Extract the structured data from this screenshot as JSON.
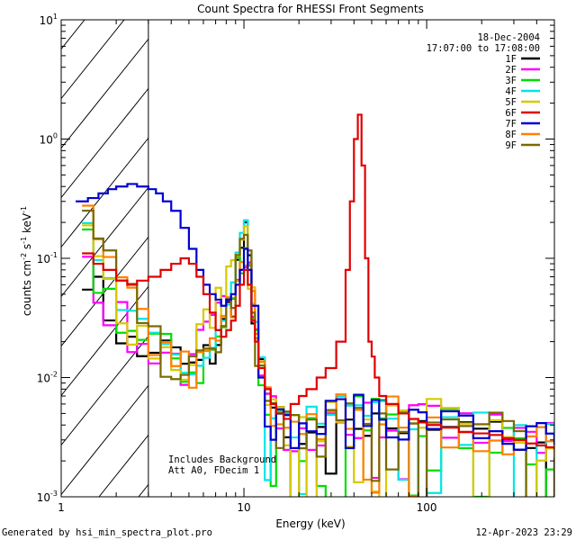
{
  "chart_data": {
    "type": "line",
    "title": "Count Spectra for RHESSI Front Segments",
    "xlabel": "Energy (keV)",
    "ylabel_base": "counts cm",
    "ylabel_exp1": "-2",
    "ylabel_mid": " s",
    "ylabel_exp2": "-1",
    "ylabel_end": " keV",
    "ylabel_exp3": "-1",
    "x_scale": "log",
    "y_scale": "log",
    "xlim": [
      1,
      500
    ],
    "ylim": [
      0.001,
      10
    ],
    "x_ticks": [
      {
        "value": 1,
        "label": "1"
      },
      {
        "value": 10,
        "label": "10"
      },
      {
        "value": 100,
        "label": "100"
      }
    ],
    "y_ticks": [
      {
        "value": 0.001,
        "base": "10",
        "exp": "-3"
      },
      {
        "value": 0.01,
        "base": "10",
        "exp": "-2"
      },
      {
        "value": 0.1,
        "base": "10",
        "exp": "-1"
      },
      {
        "value": 1,
        "base": "10",
        "exp": "0"
      },
      {
        "value": 10,
        "base": "10",
        "exp": "1"
      }
    ],
    "hatched_region": {
      "x_from": 1,
      "x_to": 3
    },
    "date": "18-Dec-2004",
    "time_range": "17:07:00 to 17:08:00",
    "annotations": [
      "Includes Background",
      "Att A0, FDecim 1"
    ],
    "series": [
      {
        "name": "1F",
        "color": "#000000"
      },
      {
        "name": "2F",
        "color": "#ff00ff"
      },
      {
        "name": "3F",
        "color": "#00dd00"
      },
      {
        "name": "4F",
        "color": "#00e6e6"
      },
      {
        "name": "5F",
        "color": "#d8c800"
      },
      {
        "name": "6F",
        "color": "#e00000"
      },
      {
        "name": "7F",
        "color": "#0000d0"
      },
      {
        "name": "8F",
        "color": "#ff8000"
      },
      {
        "name": "9F",
        "color": "#7a6a00"
      }
    ],
    "common_points": {
      "x": [
        1.3,
        1.5,
        1.7,
        2.0,
        2.3,
        2.6,
        3.0,
        3.5,
        4.0,
        4.5,
        5.0,
        5.5,
        6.0,
        6.5,
        7.0,
        7.5,
        8.0,
        8.5,
        9.0,
        9.5,
        10.0,
        10.5,
        11.0,
        11.5,
        12.0,
        13.0,
        14.0,
        15.0,
        16.5,
        18.0,
        20.0,
        22.0,
        25.0,
        28.0,
        32.0,
        36.0,
        40.0,
        45.0,
        50.0,
        55.0,
        60.0,
        70.0,
        80.0,
        90.0,
        100.0,
        120.0,
        150.0,
        180.0,
        220.0,
        260.0,
        300.0,
        350.0,
        400.0,
        450.0,
        500.0
      ],
      "baseline_y": [
        0.13,
        0.07,
        0.05,
        0.035,
        0.025,
        0.02,
        0.018,
        0.016,
        0.014,
        0.012,
        0.011,
        0.012,
        0.014,
        0.016,
        0.02,
        0.025,
        0.035,
        0.05,
        0.08,
        0.12,
        0.14,
        0.08,
        0.04,
        0.02,
        0.01,
        0.006,
        0.005,
        0.004,
        0.0035,
        0.004,
        0.0032,
        0.004,
        0.0035,
        0.0045,
        0.005,
        0.0042,
        0.0048,
        0.005,
        0.0055,
        0.0045,
        0.005,
        0.004,
        0.0042,
        0.004,
        0.0045,
        0.0038,
        0.0036,
        0.0035,
        0.0035,
        0.0032,
        0.003,
        0.0028,
        0.003,
        0.0028,
        0.0026
      ]
    },
    "series_6F_points": {
      "x": [
        1.3,
        1.5,
        1.7,
        2.0,
        2.3,
        2.6,
        3.0,
        3.5,
        4.0,
        4.5,
        5.0,
        5.5,
        6.0,
        6.5,
        7.0,
        7.5,
        8.0,
        8.5,
        9.0,
        9.5,
        10.0,
        10.5,
        11.0,
        11.5,
        12.0,
        13.0,
        14.0,
        15.0,
        16.5,
        18.0,
        20.0,
        22.0,
        25.0,
        28.0,
        32.0,
        36.0,
        38.0,
        40.0,
        42.0,
        44.0,
        46.0,
        48.0,
        50.0,
        52.0,
        55.0,
        60.0,
        70.0,
        80.0,
        90.0,
        100.0,
        120.0,
        150.0,
        180.0,
        220.0,
        260.0,
        300.0,
        350.0,
        400.0,
        450.0,
        500.0
      ],
      "y": [
        0.11,
        0.09,
        0.08,
        0.065,
        0.06,
        0.065,
        0.07,
        0.08,
        0.09,
        0.1,
        0.09,
        0.07,
        0.05,
        0.035,
        0.025,
        0.022,
        0.025,
        0.03,
        0.04,
        0.06,
        0.08,
        0.06,
        0.03,
        0.02,
        0.012,
        0.008,
        0.006,
        0.005,
        0.0045,
        0.006,
        0.007,
        0.008,
        0.01,
        0.012,
        0.02,
        0.08,
        0.3,
        1.0,
        1.6,
        0.6,
        0.1,
        0.02,
        0.015,
        0.01,
        0.007,
        0.006,
        0.005,
        0.0045,
        0.0042,
        0.004,
        0.0038,
        0.0035,
        0.0034,
        0.0033,
        0.0031,
        0.003,
        0.0028,
        0.0027,
        0.0026,
        0.0025
      ]
    },
    "series_7F_points": {
      "x": [
        1.2,
        1.4,
        1.6,
        1.8,
        2.0,
        2.3,
        2.6,
        3.0,
        3.3,
        3.6,
        4.0,
        4.5,
        5.0,
        5.5,
        6.0,
        6.5,
        7.0,
        7.5,
        8.0,
        8.5,
        9.0,
        9.5,
        10.0,
        10.5,
        11.0,
        12.0
      ],
      "y": [
        0.3,
        0.32,
        0.35,
        0.38,
        0.4,
        0.42,
        0.4,
        0.38,
        0.35,
        0.3,
        0.25,
        0.18,
        0.12,
        0.08,
        0.06,
        0.05,
        0.045,
        0.04,
        0.045,
        0.05,
        0.06,
        0.08,
        0.12,
        0.08,
        0.04,
        0.01
      ]
    },
    "footer_left": "Generated by hsi_min_spectra_plot.pro",
    "footer_right": "12-Apr-2023 23:29"
  }
}
